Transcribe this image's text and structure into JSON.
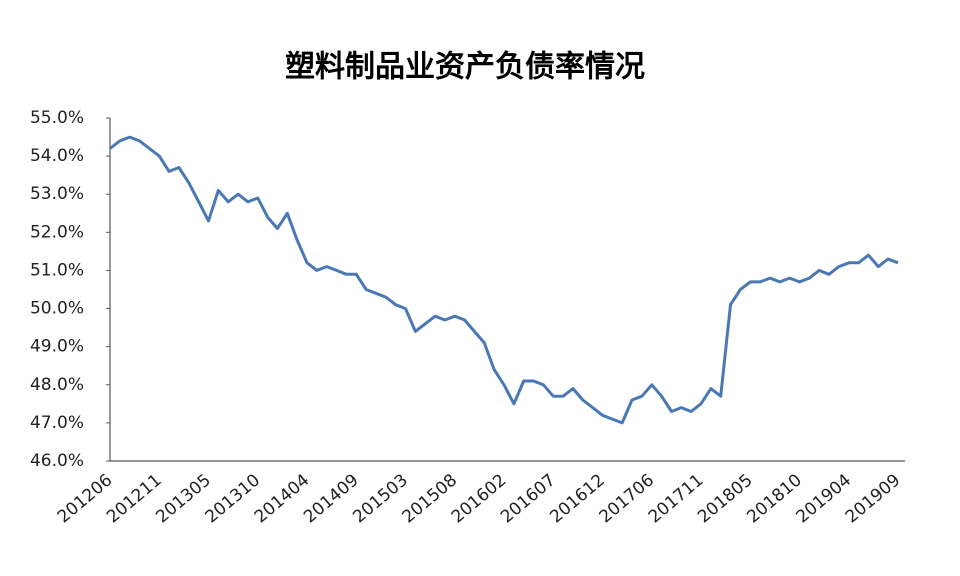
{
  "chart_data": {
    "type": "line",
    "title": "塑料制品业资产负债率情况",
    "categories": [
      "201206",
      null,
      null,
      null,
      null,
      "201211",
      null,
      null,
      null,
      null,
      "201305",
      null,
      null,
      null,
      null,
      "201310",
      null,
      null,
      null,
      null,
      "201404",
      null,
      null,
      null,
      null,
      "201409",
      null,
      null,
      null,
      null,
      "201503",
      null,
      null,
      null,
      null,
      "201508",
      null,
      null,
      null,
      null,
      "201602",
      null,
      null,
      null,
      null,
      "201607",
      null,
      null,
      null,
      null,
      "201612",
      null,
      null,
      null,
      null,
      "201706",
      null,
      null,
      null,
      null,
      "201711",
      null,
      null,
      null,
      null,
      "201805",
      null,
      null,
      null,
      null,
      "201810",
      null,
      null,
      null,
      null,
      "201904",
      null,
      null,
      null,
      null,
      "201909"
    ],
    "values": [
      54.2,
      54.4,
      54.5,
      54.4,
      54.2,
      54.0,
      53.6,
      53.7,
      53.3,
      52.8,
      52.3,
      53.1,
      52.8,
      53.0,
      52.8,
      52.9,
      52.4,
      52.1,
      52.5,
      51.8,
      51.2,
      51.0,
      51.1,
      51.0,
      50.9,
      50.9,
      50.5,
      50.4,
      50.3,
      50.1,
      50.0,
      49.4,
      49.6,
      49.8,
      49.7,
      49.8,
      49.7,
      49.4,
      49.1,
      48.4,
      48.0,
      47.5,
      48.1,
      48.1,
      48.0,
      47.7,
      47.7,
      47.9,
      47.6,
      47.4,
      47.2,
      47.1,
      47.0,
      47.6,
      47.7,
      48.0,
      47.7,
      47.3,
      47.4,
      47.3,
      47.5,
      47.9,
      47.7,
      50.1,
      50.5,
      50.7,
      50.7,
      50.8,
      50.7,
      50.8,
      50.7,
      50.8,
      51.0,
      50.9,
      51.1,
      51.2,
      51.2,
      51.4,
      51.1,
      51.3,
      51.2
    ],
    "color": "#4a78b5",
    "ylim": [
      46,
      55
    ],
    "yticks": [
      {
        "value": 46,
        "label": "46.0%"
      },
      {
        "value": 47,
        "label": "47.0%"
      },
      {
        "value": 48,
        "label": "48.0%"
      },
      {
        "value": 49,
        "label": "49.0%"
      },
      {
        "value": 50,
        "label": "50.0%"
      },
      {
        "value": 51,
        "label": "51.0%"
      },
      {
        "value": 52,
        "label": "52.0%"
      },
      {
        "value": 53,
        "label": "53.0%"
      },
      {
        "value": 54,
        "label": "54.0%"
      },
      {
        "value": 55,
        "label": "55.0%"
      }
    ],
    "grid": false
  }
}
